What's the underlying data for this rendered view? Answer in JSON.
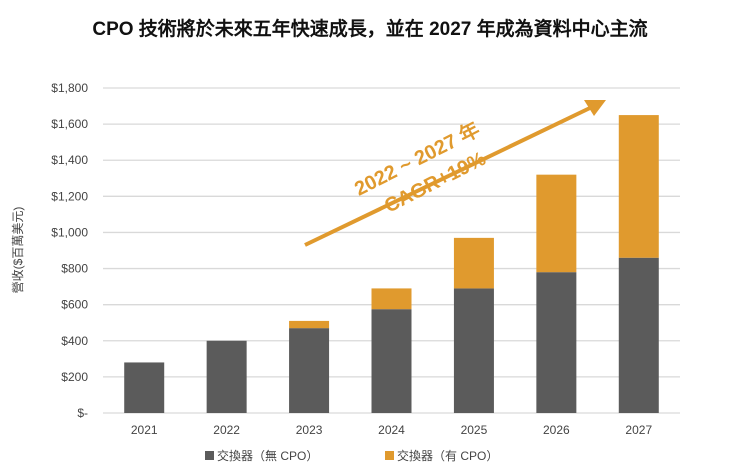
{
  "chart_data": {
    "type": "bar",
    "stacked": true,
    "title": "CPO 技術將於未來五年快速成長，並在 2027 年成為資料中心主流",
    "ylabel": "營收($百萬美元)",
    "xlabel": "",
    "categories": [
      "2021",
      "2022",
      "2023",
      "2024",
      "2025",
      "2026",
      "2027"
    ],
    "series": [
      {
        "name": "交換器（無 CPO）",
        "color": "#5B5B5B",
        "values": [
          280,
          400,
          470,
          575,
          690,
          780,
          860
        ]
      },
      {
        "name": "交換器（有 CPO）",
        "color": "#E09A2E",
        "values": [
          0,
          0,
          40,
          115,
          280,
          540,
          790
        ]
      }
    ],
    "ylim": [
      0,
      1800
    ],
    "yticks": [
      0,
      200,
      400,
      600,
      800,
      1000,
      1200,
      1400,
      1600,
      1800
    ],
    "ytick_labels": [
      "$-",
      "$200",
      "$400",
      "$600",
      "$800",
      "$1,000",
      "$1,200",
      "$1,400",
      "$1,600",
      "$1,800"
    ],
    "grid": true,
    "legend": "bottom",
    "annotation": {
      "line1": "2022 ~ 2027 年",
      "line2": "CAGR+19%",
      "color": "#E09A2E"
    }
  }
}
